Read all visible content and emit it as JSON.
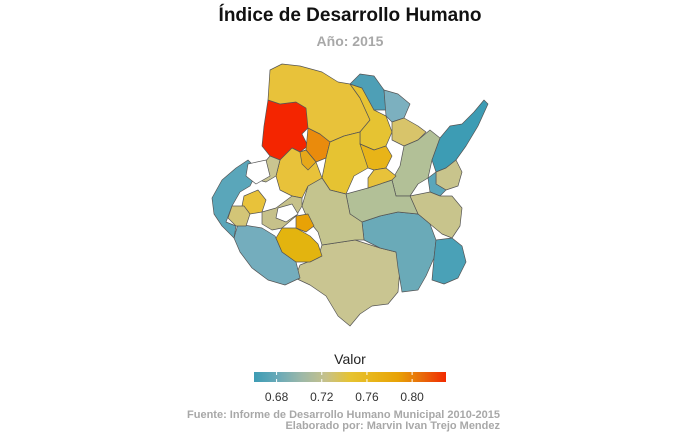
{
  "title": "Índice de Desarrollo Humano",
  "subtitle": "Año: 2015",
  "legend": {
    "title": "Valor",
    "range": [
      0.66,
      0.83
    ],
    "ticks": [
      {
        "label": "0.68",
        "value": 0.68
      },
      {
        "label": "0.72",
        "value": 0.72
      },
      {
        "label": "0.76",
        "value": 0.76
      },
      {
        "label": "0.80",
        "value": 0.8
      }
    ],
    "colors": [
      "#3d9cb4",
      "#6aaab8",
      "#9db8a8",
      "#c6c18a",
      "#e6c332",
      "#e8b418",
      "#e8a206",
      "#e86a0a",
      "#f22a00"
    ]
  },
  "caption": {
    "line1": "Fuente: Informe de Desarrollo Humano Municipal 2010-2015",
    "line2": "Elaborado por: Marvin Ivan Trejo Mendez"
  },
  "chart_data": {
    "type": "choropleth",
    "fill_variable": "Valor",
    "notes_visible": "Highest value (red) in northwest municipality; lowest values (blue) along western and eastern edges"
  }
}
